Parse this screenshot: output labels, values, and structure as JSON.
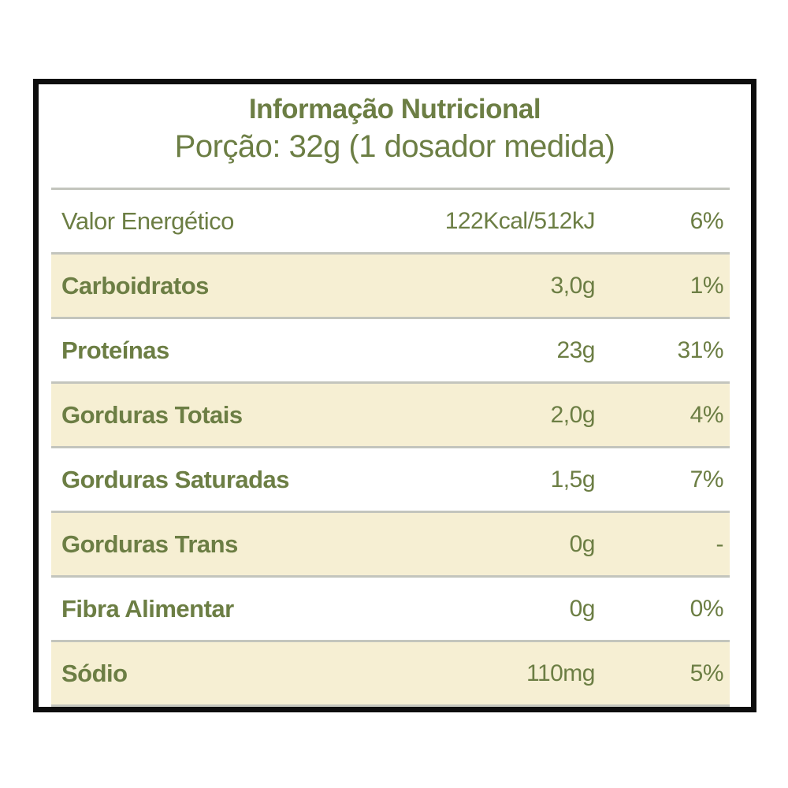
{
  "header": {
    "title": "Informação Nutricional",
    "subtitle": "Porção: 32g (1 dosador medida)"
  },
  "table": {
    "rows": [
      {
        "label": "Valor Energético",
        "value": "122Kcal/512kJ",
        "dv": "6%"
      },
      {
        "label": "Carboidratos",
        "value": "3,0g",
        "dv": "1%"
      },
      {
        "label": "Proteínas",
        "value": "23g",
        "dv": "31%"
      },
      {
        "label": "Gorduras Totais",
        "value": "2,0g",
        "dv": "4%"
      },
      {
        "label": "Gorduras Saturadas",
        "value": "1,5g",
        "dv": "7%"
      },
      {
        "label": "Gorduras Trans",
        "value": "0g",
        "dv": "-"
      },
      {
        "label": "Fibra Alimentar",
        "value": "0g",
        "dv": "0%"
      },
      {
        "label": "Sódio",
        "value": "110mg",
        "dv": "5%"
      }
    ]
  },
  "colors": {
    "text_green": "#6c7e44",
    "row_beige": "#f6efd3",
    "separator_gray": "#c3c5bd",
    "border_black": "#0d0d0d"
  }
}
